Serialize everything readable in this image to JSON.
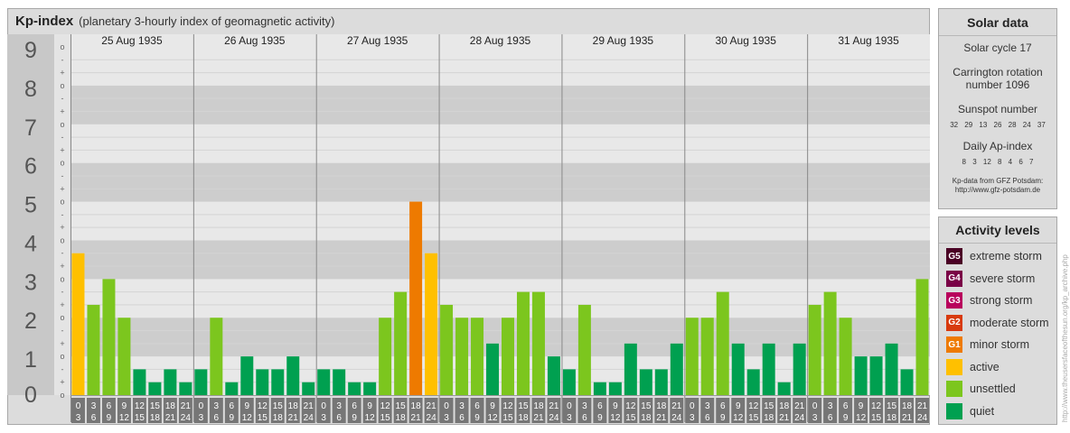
{
  "header": {
    "title": "Kp-index",
    "subtitle": "(planetary 3-hourly index of geomagnetic activity)"
  },
  "chart_data": {
    "type": "bar",
    "title": "Kp-index",
    "subtitle": "(planetary 3-hourly index of geomagnetic activity)",
    "ylim": [
      0,
      9
    ],
    "y_ticks": [
      "0",
      "1",
      "2",
      "3",
      "4",
      "5",
      "6",
      "7",
      "8",
      "9"
    ],
    "y_minor_ticks": [
      "o",
      "+",
      "-"
    ],
    "days": [
      "25 Aug 1935",
      "26 Aug 1935",
      "27 Aug 1935",
      "28 Aug 1935",
      "29 Aug 1935",
      "30 Aug 1935",
      "31 Aug 1935"
    ],
    "interval_starts": [
      "0",
      "3",
      "6",
      "9",
      "12",
      "15",
      "18",
      "21"
    ],
    "interval_ends": [
      "3",
      "6",
      "9",
      "12",
      "15",
      "18",
      "21",
      "24"
    ],
    "values": [
      3.667,
      2.333,
      3.0,
      2.0,
      0.667,
      0.333,
      0.667,
      0.333,
      0.667,
      2.0,
      0.333,
      1.0,
      0.667,
      0.667,
      1.0,
      0.333,
      0.667,
      0.667,
      0.333,
      0.333,
      2.0,
      2.667,
      5.0,
      3.667,
      2.333,
      2.0,
      2.0,
      1.333,
      2.0,
      2.667,
      2.667,
      1.0,
      0.667,
      2.333,
      0.333,
      0.333,
      1.333,
      0.667,
      0.667,
      1.333,
      2.0,
      2.0,
      2.667,
      1.333,
      0.667,
      1.333,
      0.333,
      1.333,
      2.333,
      2.667,
      2.0,
      1.0,
      1.0,
      1.333,
      0.667,
      3.0
    ],
    "level_colors": {
      "quiet": "#00a050",
      "unsettled": "#7cc61e",
      "active": "#ffc000",
      "minor": "#ee7a00"
    }
  },
  "solar": {
    "title": "Solar data",
    "cycle": "Solar cycle 17",
    "carrington": "Carrington rotation number 1096",
    "sunspot_label": "Sunspot number",
    "sunspot_values": "32 29 13 26 28 24 37",
    "ap_label": "Daily Ap-index",
    "ap_values": "8 3 12 8 4 6 7",
    "source_line1": "Kp-data from GFZ Potsdam:",
    "source_line2": "http://www.gfz-potsdam.de"
  },
  "activity": {
    "title": "Activity levels",
    "levels": [
      {
        "code": "G5",
        "label": "extreme storm",
        "color": "#4a0024"
      },
      {
        "code": "G4",
        "label": "severe storm",
        "color": "#7a0046"
      },
      {
        "code": "G3",
        "label": "strong storm",
        "color": "#b8005c"
      },
      {
        "code": "G2",
        "label": "moderate storm",
        "color": "#d83a0e"
      },
      {
        "code": "G1",
        "label": "minor storm",
        "color": "#ee7a00"
      },
      {
        "code": "",
        "label": "active",
        "color": "#ffc000"
      },
      {
        "code": "",
        "label": "unsettled",
        "color": "#7cc61e"
      },
      {
        "code": "",
        "label": "quiet",
        "color": "#00a050"
      }
    ]
  },
  "credit": "http://www.theusersfaceofthesun.org/kp_archive.php"
}
